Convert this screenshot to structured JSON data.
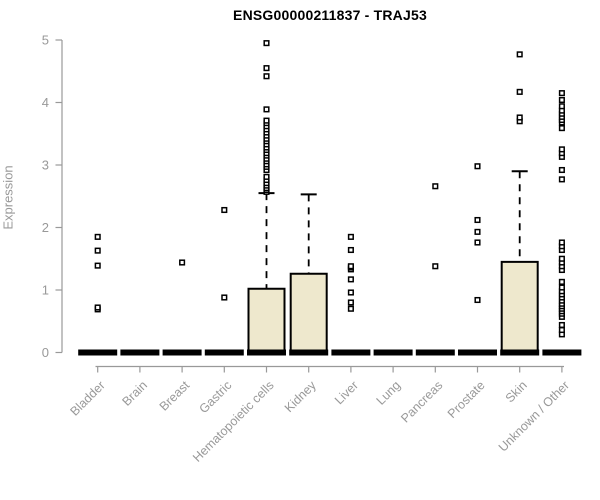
{
  "title": "ENSG00000211837 - TRAJ53",
  "chart_data": {
    "type": "boxplot",
    "title": "ENSG00000211837 - TRAJ53",
    "xlabel": "",
    "ylabel": "Expression",
    "ylim": [
      0,
      5
    ],
    "yticks": [
      0,
      1,
      2,
      3,
      4,
      5
    ],
    "grid": false,
    "legend": "none",
    "x_label_rotation": -45,
    "colors": {
      "box_fill": "#EEE8CD",
      "box_border": "#000000",
      "median": "#000000",
      "whisker": "#000000",
      "outlier_fill": "#FFFFFF",
      "outlier_border": "#000000",
      "axis": "#999999",
      "title": "#000000",
      "background": "#FFFFFF"
    },
    "categories": [
      "Bladder",
      "Brain",
      "Breast",
      "Gastric",
      "Hematopoietic cells",
      "Kidney",
      "Liver",
      "Lung",
      "Pancreas",
      "Prostate",
      "Skin",
      "Unknown / Other"
    ],
    "series": [
      {
        "category": "Bladder",
        "q1": 0,
        "median": 0,
        "q3": 0,
        "whisker_low": 0,
        "whisker_high": 0,
        "outliers": [
          0.69,
          0.72,
          1.39,
          1.63,
          1.85
        ]
      },
      {
        "category": "Brain",
        "q1": 0,
        "median": 0,
        "q3": 0,
        "whisker_low": 0,
        "whisker_high": 0,
        "outliers": []
      },
      {
        "category": "Breast",
        "q1": 0,
        "median": 0,
        "q3": 0,
        "whisker_low": 0,
        "whisker_high": 0,
        "outliers": [
          1.44
        ]
      },
      {
        "category": "Gastric",
        "q1": 0,
        "median": 0,
        "q3": 0,
        "whisker_low": 0,
        "whisker_high": 0,
        "outliers": [
          0.88,
          2.28
        ]
      },
      {
        "category": "Hematopoietic cells",
        "q1": 0,
        "median": 0,
        "q3": 1.02,
        "whisker_low": 0,
        "whisker_high": 2.55,
        "outliers": [
          2.57,
          2.6,
          2.63,
          2.67,
          2.71,
          2.76,
          2.81,
          2.92,
          2.97,
          3.01,
          3.06,
          3.1,
          3.15,
          3.19,
          3.24,
          3.28,
          3.33,
          3.38,
          3.42,
          3.47,
          3.52,
          3.57,
          3.62,
          3.67,
          3.71,
          3.89,
          4.42,
          4.55,
          4.95
        ]
      },
      {
        "category": "Kidney",
        "q1": 0,
        "median": 0,
        "q3": 1.26,
        "whisker_low": 0,
        "whisker_high": 2.53,
        "outliers": []
      },
      {
        "category": "Liver",
        "q1": 0,
        "median": 0,
        "q3": 0,
        "whisker_low": 0,
        "whisker_high": 0,
        "outliers": [
          0.7,
          0.8,
          0.96,
          1.17,
          1.33,
          1.36,
          1.38,
          1.64,
          1.85
        ]
      },
      {
        "category": "Lung",
        "q1": 0,
        "median": 0,
        "q3": 0,
        "whisker_low": 0,
        "whisker_high": 0,
        "outliers": []
      },
      {
        "category": "Pancreas",
        "q1": 0,
        "median": 0,
        "q3": 0,
        "whisker_low": 0,
        "whisker_high": 0,
        "outliers": [
          1.38,
          2.66
        ]
      },
      {
        "category": "Prostate",
        "q1": 0,
        "median": 0,
        "q3": 0,
        "whisker_low": 0,
        "whisker_high": 0,
        "outliers": [
          0.84,
          1.76,
          1.93,
          2.12,
          2.98
        ]
      },
      {
        "category": "Skin",
        "q1": 0,
        "median": 0,
        "q3": 1.45,
        "whisker_low": 0,
        "whisker_high": 2.9,
        "outliers": [
          3.7,
          3.76,
          4.17,
          4.77
        ]
      },
      {
        "category": "Unknown / Other",
        "q1": 0,
        "median": 0,
        "q3": 0,
        "whisker_low": 0,
        "whisker_high": 0,
        "outliers": [
          0.29,
          0.36,
          0.44,
          0.57,
          0.62,
          0.66,
          0.7,
          0.74,
          0.78,
          0.83,
          0.88,
          0.93,
          0.98,
          1.04,
          1.13,
          1.32,
          1.38,
          1.44,
          1.5,
          1.64,
          1.7,
          1.76,
          2.77,
          2.92,
          3.13,
          3.19,
          3.25,
          3.59,
          3.68,
          3.72,
          3.77,
          3.82,
          3.87,
          3.94,
          4.04,
          4.15
        ]
      }
    ]
  }
}
